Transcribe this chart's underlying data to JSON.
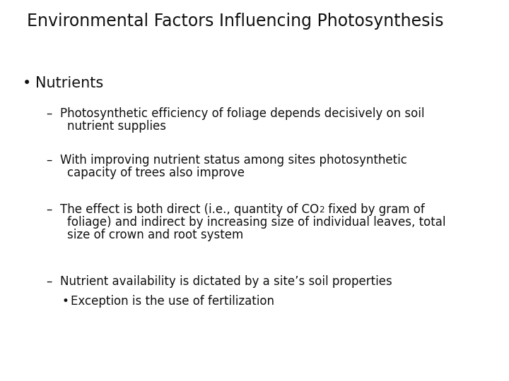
{
  "title": "Environmental Factors Influencing Photosynthesis",
  "background": "#ffffff",
  "fg": "#111111",
  "title_fs": 17,
  "bullet_fs": 15,
  "body_fs": 12,
  "font": "DejaVu Sans",
  "sub3_pre": "The effect is both direct (i.e., quantity of CO",
  "sub3_post": " fixed by gram of",
  "sub3_line2": "foliage) and indirect by increasing size of individual leaves, total",
  "sub3_line3": "size of crown and root system",
  "sub4": "Nutrient availability is dictated by a site’s soil properties",
  "subsub": "Exception is the use of fertilization"
}
